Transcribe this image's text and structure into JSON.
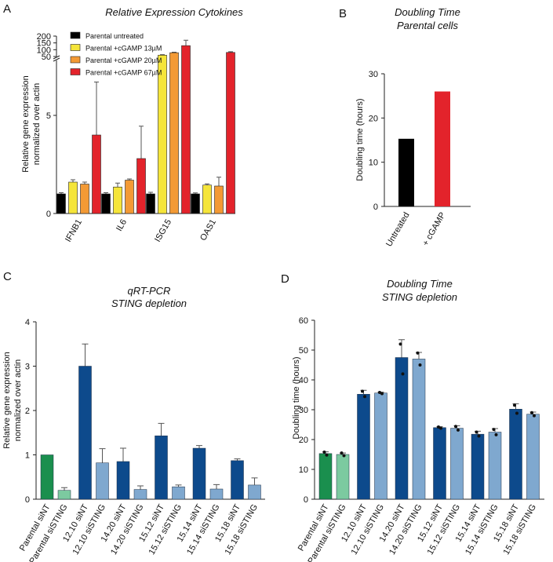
{
  "chart_data": [
    {
      "id": "A",
      "type": "bar",
      "panel_letter": "A",
      "title": "Relative Expression Cytokines",
      "ylabel": [
        "Relative gene expression",
        "normalized over actin"
      ],
      "categories": [
        "IFNB1",
        "IL6",
        "ISG15",
        "OAS1"
      ],
      "y_ticks_lower": [
        0,
        5
      ],
      "y_ticks_upper": [
        50,
        100,
        150,
        200
      ],
      "axis_break": [
        7.8,
        50
      ],
      "series": [
        {
          "name": "Parental untreated",
          "color": "#000000",
          "values": [
            1.0,
            1.0,
            1.0,
            1.0
          ],
          "err": [
            0.06,
            0.06,
            0.08,
            0.05
          ]
        },
        {
          "name": "Parental +cGAMP 13µM",
          "color": "#f5e53a",
          "values": [
            1.6,
            1.35,
            60,
            1.45
          ],
          "err": [
            0.12,
            0.2,
            4,
            0.06
          ]
        },
        {
          "name": "Parental +cGAMP 20µM",
          "color": "#f39a35",
          "values": [
            1.5,
            1.7,
            78,
            1.4
          ],
          "err": [
            0.1,
            0.06,
            4,
            0.45
          ]
        },
        {
          "name": "Parental +cGAMP 67µM",
          "color": "#e3232b",
          "values": [
            4.0,
            2.8,
            130,
            80
          ],
          "err": [
            2.7,
            1.65,
            40,
            5
          ]
        }
      ]
    },
    {
      "id": "B",
      "type": "bar",
      "panel_letter": "B",
      "title": [
        "Doubling Time",
        "Parental cells"
      ],
      "ylabel": "Doubling time (hours)",
      "ylim": [
        0,
        30
      ],
      "y_ticks": [
        0,
        10,
        20,
        30
      ],
      "categories": [
        "Untreated",
        "+ cGAMP"
      ],
      "values": [
        15.3,
        26.0
      ],
      "colors": [
        "#000000",
        "#e3232b"
      ]
    },
    {
      "id": "C",
      "type": "bar",
      "panel_letter": "C",
      "title": [
        "qRT-PCR",
        "STING depletion"
      ],
      "ylabel": [
        "Relative gene expression",
        "normalized over actin"
      ],
      "ylim": [
        0,
        4
      ],
      "y_ticks": [
        0,
        1,
        2,
        3,
        4
      ],
      "categories": [
        "Parental siNT",
        "Parental siSTING",
        "12.10 siNT",
        "12.10 siSTING",
        "14.20 siNT",
        "14.20 siSTING",
        "15.12 siNT",
        "15.12 siSTING",
        "15.14 siNT",
        "15.14 siSTING",
        "15.18 siNT",
        "15.18 siSTING"
      ],
      "values": [
        1.0,
        0.2,
        3.0,
        0.82,
        0.85,
        0.22,
        1.43,
        0.28,
        1.15,
        0.23,
        0.87,
        0.32
      ],
      "err": [
        0,
        0.06,
        0.5,
        0.32,
        0.3,
        0.08,
        0.28,
        0.04,
        0.06,
        0.1,
        0.04,
        0.16
      ],
      "colors": [
        "#1a8f4e",
        "#7ccaa0",
        "#0d4a8c",
        "#7fa8cf",
        "#0d4a8c",
        "#7fa8cf",
        "#0d4a8c",
        "#7fa8cf",
        "#0d4a8c",
        "#7fa8cf",
        "#0d4a8c",
        "#7fa8cf"
      ]
    },
    {
      "id": "D",
      "type": "bar",
      "panel_letter": "D",
      "title": [
        "Doubling Time",
        "STING depletion"
      ],
      "ylabel": "Doubling time (hours)",
      "ylim": [
        0,
        60
      ],
      "y_ticks": [
        0,
        10,
        20,
        30,
        40,
        50,
        60
      ],
      "categories": [
        "Parental siNT",
        "Parental siSTING",
        "12.10 siNT",
        "12.10 siSTING",
        "14.20 siNT",
        "14.20 siSTING",
        "15.12 siNT",
        "15.12 siSTING",
        "15.14 siNT",
        "15.14 siSTING",
        "15.18 siNT",
        "15.18 siSTING"
      ],
      "values": [
        15.3,
        15.0,
        35.2,
        35.6,
        47.5,
        47.0,
        24.0,
        23.8,
        21.8,
        22.5,
        30.2,
        28.5
      ],
      "err": [
        0.6,
        0.5,
        1.3,
        0.3,
        6.0,
        2.2,
        0.3,
        0.8,
        1.0,
        1.2,
        1.8,
        0.7
      ],
      "points": [
        [
          15.8,
          14.8
        ],
        [
          15.5,
          14.6
        ],
        [
          36.2,
          34.4
        ],
        [
          35.8,
          35.4
        ],
        [
          52,
          42
        ],
        [
          49,
          45
        ],
        [
          24.2,
          23.8
        ],
        [
          24.4,
          23.2
        ],
        [
          22.5,
          21.2
        ],
        [
          23.4,
          21.6
        ],
        [
          31.5,
          28.8
        ],
        [
          29.0,
          28.0
        ]
      ],
      "colors": [
        "#1a8f4e",
        "#7ccaa0",
        "#0d4a8c",
        "#7fa8cf",
        "#0d4a8c",
        "#7fa8cf",
        "#0d4a8c",
        "#7fa8cf",
        "#0d4a8c",
        "#7fa8cf",
        "#0d4a8c",
        "#7fa8cf"
      ]
    }
  ]
}
